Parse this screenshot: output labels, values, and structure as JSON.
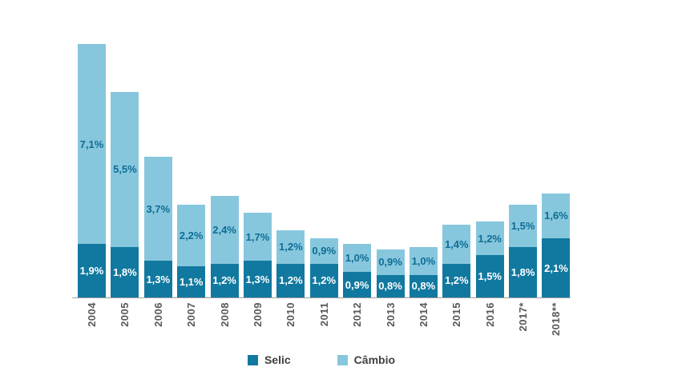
{
  "chart_data": {
    "type": "bar",
    "stacked": true,
    "title": "",
    "xlabel": "",
    "ylabel": "",
    "ylim": [
      0,
      9.2
    ],
    "grid": false,
    "legend_position": "bottom-center",
    "axis_color": "#9e9e9e",
    "tick_label_color": "#595959",
    "categories": [
      "2004",
      "2005",
      "2006",
      "2007",
      "2008",
      "2009",
      "2010",
      "2011",
      "2012",
      "2013",
      "2014",
      "2015",
      "2016",
      "2017*",
      "2018**"
    ],
    "series": [
      {
        "name": "Selic",
        "color": "#1179a0",
        "label_color": "#ffffff",
        "values": [
          1.9,
          1.8,
          1.3,
          1.1,
          1.2,
          1.3,
          1.2,
          1.2,
          0.9,
          0.8,
          0.8,
          1.2,
          1.5,
          1.8,
          2.1
        ],
        "labels": [
          "1,9%",
          "1,8%",
          "1,3%",
          "1,1%",
          "1,2%",
          "1,3%",
          "1,2%",
          "1,2%",
          "0,9%",
          "0,8%",
          "0,8%",
          "1,2%",
          "1,5%",
          "1,8%",
          "2,1%"
        ]
      },
      {
        "name": "Câmbio",
        "color": "#87c7dd",
        "label_color": "#0d6d96",
        "values": [
          7.1,
          5.5,
          3.7,
          2.2,
          2.4,
          1.7,
          1.2,
          0.9,
          1.0,
          0.9,
          1.0,
          1.4,
          1.2,
          1.5,
          1.6
        ],
        "labels": [
          "7,1%",
          "5,5%",
          "3,7%",
          "2,2%",
          "2,4%",
          "1,7%",
          "1,2%",
          "0,9%",
          "1,0%",
          "0,9%",
          "1,0%",
          "1,4%",
          "1,2%",
          "1,5%",
          "1,6%"
        ]
      }
    ],
    "legend": [
      {
        "label": "Selic",
        "color": "#1179a0"
      },
      {
        "label": "Câmbio",
        "color": "#87c7dd"
      }
    ]
  }
}
